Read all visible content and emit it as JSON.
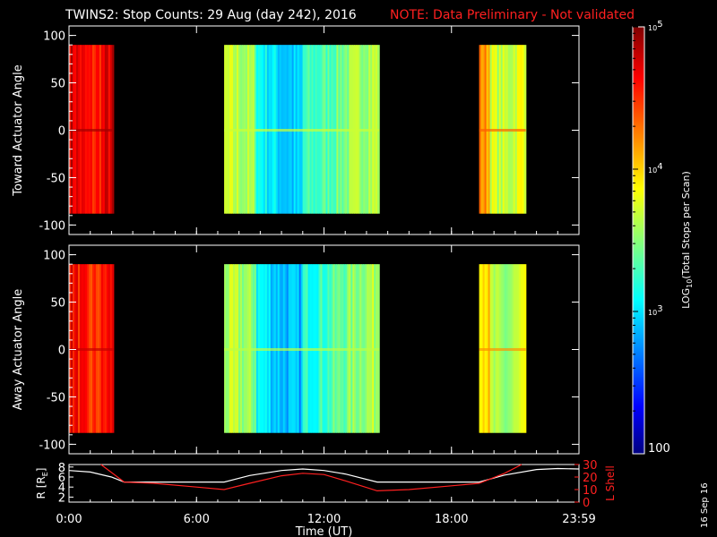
{
  "header": {
    "title": "TWINS2: Stop Counts: 29 Aug (day 242), 2016",
    "note": "NOTE: Data Preliminary - Not validated",
    "note_color": "#ff2020"
  },
  "side_stamp": "16 Sep 16",
  "chart_data": [
    {
      "type": "heatmap",
      "panel": "toward",
      "ylabel": "Toward Actuator Angle",
      "ylim": [
        -110,
        110
      ],
      "yticks": [
        100,
        50,
        0,
        -50,
        -100
      ],
      "xlim_hours": [
        0,
        24
      ],
      "data_ylim": [
        -88,
        90
      ],
      "segments": [
        {
          "start": 0.0,
          "end": 2.1,
          "level": 4.65
        },
        {
          "start": 7.3,
          "end": 14.6,
          "level": 3.45
        },
        {
          "start": 19.3,
          "end": 21.5,
          "level": 4.1
        }
      ]
    },
    {
      "type": "heatmap",
      "panel": "away",
      "ylabel": "Away Actuator Angle",
      "ylim": [
        -110,
        110
      ],
      "yticks": [
        100,
        50,
        0,
        -50,
        -100
      ],
      "xlim_hours": [
        0,
        24
      ],
      "data_ylim": [
        -88,
        90
      ],
      "segments": [
        {
          "start": 0.0,
          "end": 2.1,
          "level": 4.55
        },
        {
          "start": 7.3,
          "end": 14.6,
          "level": 3.4
        },
        {
          "start": 19.3,
          "end": 21.5,
          "level": 3.95
        }
      ]
    },
    {
      "type": "line",
      "panel": "orbit",
      "ylabel_left": "R [R",
      "ylabel_left_sub": "E",
      "ylabel_left_end": "]",
      "yticks_left": [
        8,
        6,
        4,
        2
      ],
      "ylim_left": [
        1,
        8.5
      ],
      "ylabel_right": "L Shell",
      "yticks_right": [
        30,
        20,
        10,
        0
      ],
      "ylim_right": [
        0,
        30
      ],
      "xlabel": "Time (UT)",
      "xticks": [
        {
          "h": 0,
          "label": "0:00"
        },
        {
          "h": 6,
          "label": "6:00"
        },
        {
          "h": 12,
          "label": "12:00"
        },
        {
          "h": 18,
          "label": "18:00"
        },
        {
          "h": 24,
          "label": "23:59"
        }
      ],
      "series": [
        {
          "axis": "left",
          "color": "#ffffff",
          "x": [
            0,
            1,
            2,
            2.6,
            4,
            6,
            7.3,
            8.5,
            10,
            11,
            12,
            13,
            14.5,
            16,
            18,
            19.3,
            20.5,
            22,
            23,
            24
          ],
          "y": [
            7.3,
            7.0,
            6.0,
            5.0,
            5.0,
            5.0,
            5.0,
            6.3,
            7.3,
            7.6,
            7.3,
            6.6,
            5.0,
            5.0,
            5.0,
            5.0,
            6.4,
            7.5,
            7.7,
            7.6
          ]
        },
        {
          "axis": "right",
          "color": "#ff2020",
          "x": [
            1.5,
            2.6,
            4,
            6,
            7.3,
            8.5,
            10,
            11,
            12,
            13,
            14.5,
            16,
            18,
            19.3,
            20.5,
            21.3
          ],
          "y": [
            30,
            16,
            15,
            12,
            10,
            15,
            21,
            23,
            22,
            17,
            9,
            10,
            13,
            15,
            23,
            30
          ]
        }
      ]
    }
  ],
  "colorbar": {
    "label": "LOG",
    "label_sub": "10",
    "label_rest": "(Total Stops per Scan)",
    "min_label": "100",
    "ticks": [
      {
        "base": "10",
        "exp": "3",
        "log": 3
      },
      {
        "base": "10",
        "exp": "4",
        "log": 4
      },
      {
        "base": "10",
        "exp": "5",
        "log": 5
      }
    ],
    "range_log": [
      2,
      5
    ]
  }
}
